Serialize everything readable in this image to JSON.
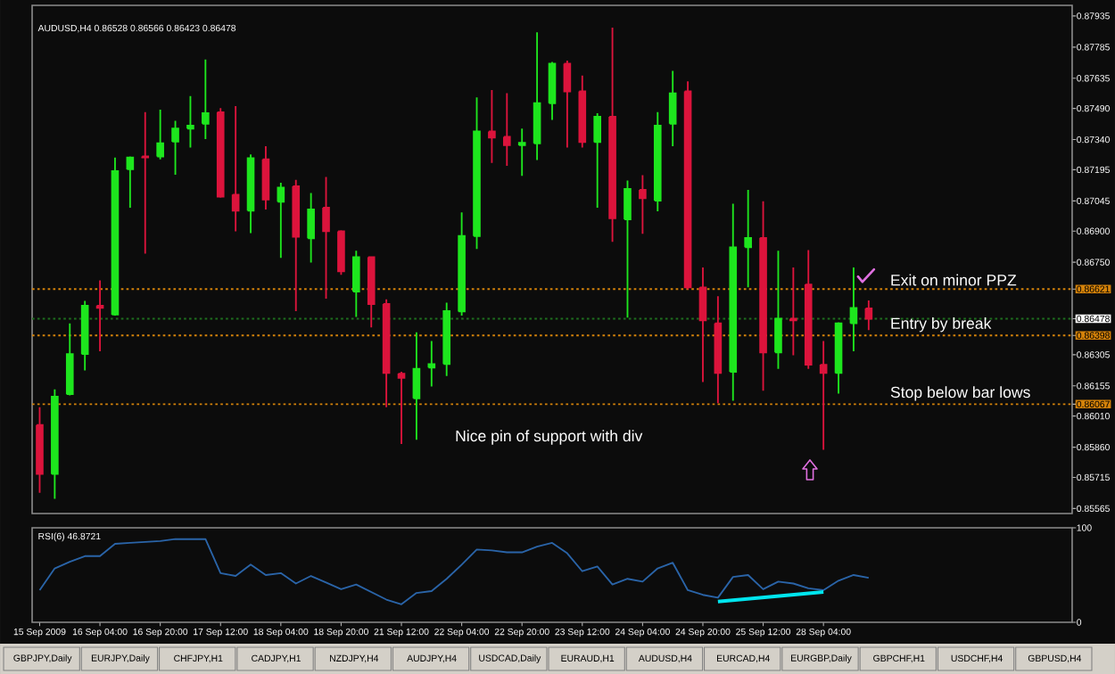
{
  "chart_data": [
    {
      "type": "candlestick",
      "title": "AUDUSD,H4 0.86528 0.86566 0.86423 0.86478",
      "categories": [
        null,
        null,
        null,
        null,
        null,
        null,
        null,
        null,
        null,
        null,
        null,
        null,
        null,
        null,
        null,
        null,
        null,
        null,
        null,
        null,
        null,
        null,
        null,
        null,
        null,
        null,
        null,
        null,
        null,
        null,
        null,
        null,
        null,
        null,
        null,
        null,
        null,
        null,
        null,
        null,
        null,
        null,
        null,
        null,
        null,
        null,
        null,
        null,
        null,
        null,
        null,
        null,
        null,
        null,
        null,
        null,
        null,
        null,
        null,
        null,
        null,
        null,
        null,
        null,
        null,
        null,
        null,
        null,
        null
      ],
      "tick_labels": "y",
      "ohlc": [
        [
          0.85967,
          0.86052,
          0.85641,
          0.85731
        ],
        [
          0.85731,
          0.86138,
          0.85612,
          0.86103
        ],
        [
          0.86115,
          0.86456,
          0.86109,
          0.86308
        ],
        [
          0.86308,
          0.86564,
          0.86229,
          0.86541
        ],
        [
          0.86541,
          0.86663,
          0.86322,
          0.8653
        ],
        [
          0.86498,
          0.87254,
          0.86493,
          0.87188
        ],
        [
          0.87197,
          0.87259,
          0.87012,
          0.87254
        ],
        [
          0.87259,
          0.87472,
          0.86791,
          0.87254
        ],
        [
          0.87259,
          0.87484,
          0.87245,
          0.87322
        ],
        [
          0.8733,
          0.8743,
          0.87171,
          0.87393
        ],
        [
          0.87393,
          0.87549,
          0.87302,
          0.87407
        ],
        [
          0.87416,
          0.87725,
          0.87342,
          0.87467
        ],
        [
          0.87472,
          0.87492,
          0.87061,
          0.87066
        ],
        [
          0.87075,
          0.87501,
          0.86899,
          0.86998
        ],
        [
          0.86998,
          0.87268,
          0.8689,
          0.87251
        ],
        [
          0.87245,
          0.87308,
          0.87004,
          0.87052
        ],
        [
          0.87041,
          0.87132,
          0.86771,
          0.87109
        ],
        [
          0.87115,
          0.87146,
          0.86515,
          0.86873
        ],
        [
          0.86865,
          0.87083,
          0.86748,
          0.87004
        ],
        [
          0.87012,
          0.8716,
          0.86575,
          0.86899
        ],
        [
          0.86899,
          0.86904,
          0.86689,
          0.86706
        ],
        [
          0.86609,
          0.86805,
          0.86487,
          0.86774
        ],
        [
          0.86774,
          0.86777,
          0.86436,
          0.86549
        ],
        [
          0.86549,
          0.86572,
          0.86052,
          0.86217
        ],
        [
          0.86214,
          0.86223,
          0.85876,
          0.86194
        ],
        [
          0.86095,
          0.86413,
          0.85896,
          0.86237
        ],
        [
          0.86243,
          0.86371,
          0.86152,
          0.8626
        ],
        [
          0.8626,
          0.86555,
          0.86203,
          0.86515
        ],
        [
          0.86513,
          0.8699,
          0.86493,
          0.86876
        ],
        [
          0.86876,
          0.87543,
          0.86814,
          0.87379
        ],
        [
          0.87379,
          0.87578,
          0.87228,
          0.8735
        ],
        [
          0.87353,
          0.87563,
          0.87214,
          0.87313
        ],
        [
          0.87313,
          0.87393,
          0.87166,
          0.87325
        ],
        [
          0.87322,
          0.87856,
          0.87242,
          0.87515
        ],
        [
          0.87515,
          0.87714,
          0.87435,
          0.87705
        ],
        [
          0.87705,
          0.8772,
          0.87302,
          0.87572
        ],
        [
          0.87572,
          0.87648,
          0.87302,
          0.87328
        ],
        [
          0.87328,
          0.87467,
          0.87012,
          0.8745
        ],
        [
          0.8745,
          0.87879,
          0.86848,
          0.86961
        ],
        [
          0.86956,
          0.87143,
          0.86484,
          0.87103
        ],
        [
          0.87098,
          0.87169,
          0.86887,
          0.87058
        ],
        [
          0.87046,
          0.87472,
          0.86995,
          0.87407
        ],
        [
          0.87416,
          0.87671,
          0.87308,
          0.87563
        ],
        [
          0.87572,
          0.8762,
          0.8662,
          0.86629
        ],
        [
          0.86629,
          0.86725,
          0.86174,
          0.8647
        ],
        [
          0.86456,
          0.86586,
          0.86072,
          0.86217
        ],
        [
          0.86223,
          0.87032,
          0.86083,
          0.86822
        ],
        [
          0.86822,
          0.87098,
          0.86629,
          0.86867
        ],
        [
          0.86867,
          0.87043,
          0.86132,
          0.86316
        ],
        [
          0.86316,
          0.86805,
          0.86237,
          0.86478
        ],
        [
          0.86478,
          0.86725,
          0.86302,
          0.8647
        ],
        [
          0.86643,
          0.86808,
          0.86237,
          0.86257
        ],
        [
          0.86257,
          0.86371,
          0.85848,
          0.86217
        ],
        [
          0.86217,
          0.86461,
          0.86118,
          0.86456
        ],
        [
          0.86456,
          0.86725,
          0.86322,
          0.8653
        ],
        [
          0.86528,
          0.86566,
          0.86423,
          0.86478
        ],
        null,
        null,
        null,
        null,
        null,
        null,
        null,
        null,
        null,
        null,
        null,
        null,
        null
      ],
      "colors": [
        "#dc143c",
        "#1ee61e",
        "#1ee61e",
        "#1ee61e",
        "#dc143c",
        "#1ee61e",
        "#1ee61e",
        "#dc143c",
        "#1ee61e",
        "#1ee61e",
        "#1ee61e",
        "#1ee61e",
        "#dc143c",
        "#dc143c",
        "#1ee61e",
        "#dc143c",
        "#1ee61e",
        "#dc143c",
        "#1ee61e",
        "#dc143c",
        "#dc143c",
        "#1ee61e",
        "#dc143c",
        "#dc143c",
        "#dc143c",
        "#1ee61e",
        "#1ee61e",
        "#1ee61e",
        "#1ee61e",
        "#1ee61e",
        "#dc143c",
        "#dc143c",
        "#1ee61e",
        "#1ee61e",
        "#1ee61e",
        "#dc143c",
        "#dc143c",
        "#1ee61e",
        "#dc143c",
        "#1ee61e",
        "#dc143c",
        "#1ee61e",
        "#1ee61e",
        "#dc143c",
        "#dc143c",
        "#dc143c",
        "#1ee61e",
        "#1ee61e",
        "#dc143c",
        "#1ee61e",
        "#dc143c",
        "#dc143c",
        "#dc143c",
        "#1ee61e",
        "#1ee61e",
        "#dc143c",
        null,
        null,
        null,
        null,
        null,
        null,
        null,
        null,
        null,
        null,
        null,
        null,
        null
      ],
      "ylim": [
        0.85541,
        0.87986
      ],
      "yticks": [
        0.87935,
        0.87785,
        0.87635,
        {
          "value": 0.8749,
          "label": "0.87490"
        },
        {
          "value": 0.8734,
          "label": "0.87340"
        },
        0.87195,
        0.87045,
        {
          "value": 0.869,
          "label": "0.86900"
        },
        {
          "value": 0.8675,
          "label": "0.86750"
        },
        0.86621,
        0.86478,
        0.86398,
        0.86305,
        0.86155,
        0.86067,
        {
          "value": 0.8601,
          "label": "0.86010"
        },
        {
          "value": 0.8586,
          "label": "0.85860"
        },
        0.85715,
        0.85565
      ],
      "ref_lines": [
        {
          "axis": "y",
          "value": 0.86621,
          "label": "Exit on minor PPZ",
          "color": "#d4820a",
          "line_style": "dotted"
        },
        {
          "axis": "y",
          "value": 0.86478,
          "label": null,
          "color": "#1e6e1e",
          "line_style": "dotted"
        },
        {
          "axis": "y",
          "value": 0.86398,
          "label": "Entry by break",
          "color": "#d4820a",
          "line_style": "dotted"
        },
        {
          "axis": "y",
          "value": 0.86067,
          "label": "Stop below bar lows",
          "color": "#d4820a",
          "line_style": "dotted"
        }
      ],
      "annotations": [
        "Nice pin of support with div"
      ]
    },
    {
      "type": "line",
      "title": "RSI(6) 46.8721",
      "categories": [
        "15 Sep 2009",
        null,
        null,
        null,
        "16 Sep 04:00",
        null,
        null,
        null,
        "16 Sep 20:00",
        null,
        null,
        null,
        "17 Sep 12:00",
        null,
        null,
        null,
        "18 Sep 04:00",
        null,
        null,
        null,
        "18 Sep 20:00",
        null,
        null,
        null,
        "21 Sep 12:00",
        null,
        null,
        null,
        "22 Sep 04:00",
        null,
        null,
        null,
        "22 Sep 20:00",
        null,
        null,
        null,
        "23 Sep 12:00",
        null,
        null,
        null,
        "24 Sep 04:00",
        null,
        null,
        null,
        "24 Sep 20:00",
        null,
        null,
        null,
        "25 Sep 12:00",
        null,
        null,
        null,
        "28 Sep 04:00",
        null,
        null,
        null,
        null,
        null,
        null,
        null,
        null,
        null,
        null,
        null,
        null,
        null,
        null,
        null,
        null
      ],
      "series": [
        {
          "color": "#2a64a8",
          "values": [
            34,
            57,
            64,
            70,
            70,
            83,
            84,
            85,
            86,
            88,
            88,
            88,
            52,
            49,
            61,
            50,
            52,
            41,
            49,
            42,
            35,
            40,
            32,
            24,
            19,
            31,
            33,
            46,
            61,
            77,
            76,
            74,
            74,
            80,
            84,
            73,
            54,
            59,
            40,
            46,
            43,
            57,
            63,
            34,
            29,
            26,
            48,
            50,
            35,
            43,
            41,
            36,
            34,
            44,
            50,
            47,
            null,
            null,
            null,
            null,
            null,
            null,
            null,
            null,
            null,
            null,
            null,
            null,
            null
          ]
        },
        {
          "color": "#00e5ee",
          "values": [
            null,
            null,
            null,
            null,
            null,
            null,
            null,
            null,
            null,
            null,
            null,
            null,
            null,
            null,
            null,
            null,
            null,
            null,
            null,
            null,
            null,
            null,
            null,
            null,
            null,
            null,
            null,
            null,
            null,
            null,
            null,
            null,
            null,
            null,
            null,
            null,
            null,
            null,
            null,
            null,
            null,
            null,
            null,
            null,
            null,
            22,
            null,
            null,
            null,
            null,
            null,
            null,
            32,
            null,
            null,
            null,
            null,
            null,
            null,
            null,
            null,
            null,
            null,
            null,
            null,
            null,
            null,
            null,
            null
          ]
        }
      ],
      "ylim": [
        0,
        100
      ],
      "yticks": [
        {
          "value": 0,
          "label": "0"
        },
        {
          "value": 100,
          "label": "100"
        }
      ],
      "annotations": [
        "GBPJPY,Daily",
        "EURJPY,Daily",
        "CHFJPY,H1",
        "CADJPY,H1",
        "NZDJPY,H4",
        "AUDJPY,H4",
        "USDCAD,Daily",
        "EURAUD,H1",
        "AUDUSD,H4",
        "EURCAD,H4",
        "EURGBP,Daily",
        "GBPCHF,H1",
        "USDCHF,H4",
        "GBPUSD,H4"
      ]
    }
  ]
}
